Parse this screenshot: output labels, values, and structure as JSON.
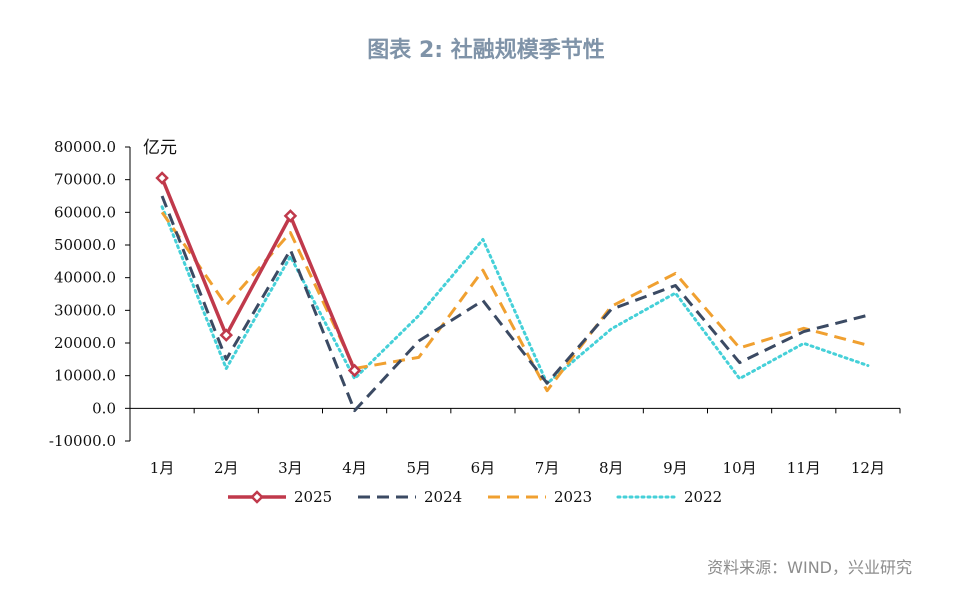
{
  "title": "图表 2: 社融规模季节性",
  "unit_label": "亿元",
  "source": "资料来源：WIND，兴业研究",
  "chart_data": {
    "type": "line",
    "categories": [
      "1月",
      "2月",
      "3月",
      "4月",
      "5月",
      "6月",
      "7月",
      "8月",
      "9月",
      "10月",
      "11月",
      "12月"
    ],
    "ylim": [
      -10000,
      80000
    ],
    "yticks": [
      -10000,
      0,
      10000,
      20000,
      30000,
      40000,
      50000,
      60000,
      70000,
      80000
    ],
    "ytick_labels": [
      "-10000.0",
      "0.0",
      "10000.0",
      "20000.0",
      "30000.0",
      "40000.0",
      "50000.0",
      "60000.0",
      "70000.0",
      "80000.0"
    ],
    "grid": false,
    "legend_position": "bottom",
    "series": [
      {
        "name": "2025",
        "color": "#c0394b",
        "style": "solid-marker",
        "values": [
          70500,
          22400,
          58900,
          11600,
          null,
          null,
          null,
          null,
          null,
          null,
          null,
          null
        ]
      },
      {
        "name": "2024",
        "color": "#3b4a63",
        "style": "dash",
        "values": [
          65000,
          15000,
          48500,
          -700,
          20600,
          33000,
          7700,
          30300,
          37600,
          14000,
          23500,
          28500
        ]
      },
      {
        "name": "2023",
        "color": "#f0a030",
        "style": "dash",
        "values": [
          60000,
          31600,
          53800,
          12200,
          15600,
          42300,
          5400,
          31200,
          41300,
          18500,
          24500,
          19300
        ]
      },
      {
        "name": "2022",
        "color": "#45d0d8",
        "style": "dot",
        "values": [
          61700,
          12200,
          46500,
          9100,
          28400,
          51700,
          7600,
          24300,
          35300,
          9100,
          19900,
          13100
        ]
      }
    ]
  }
}
